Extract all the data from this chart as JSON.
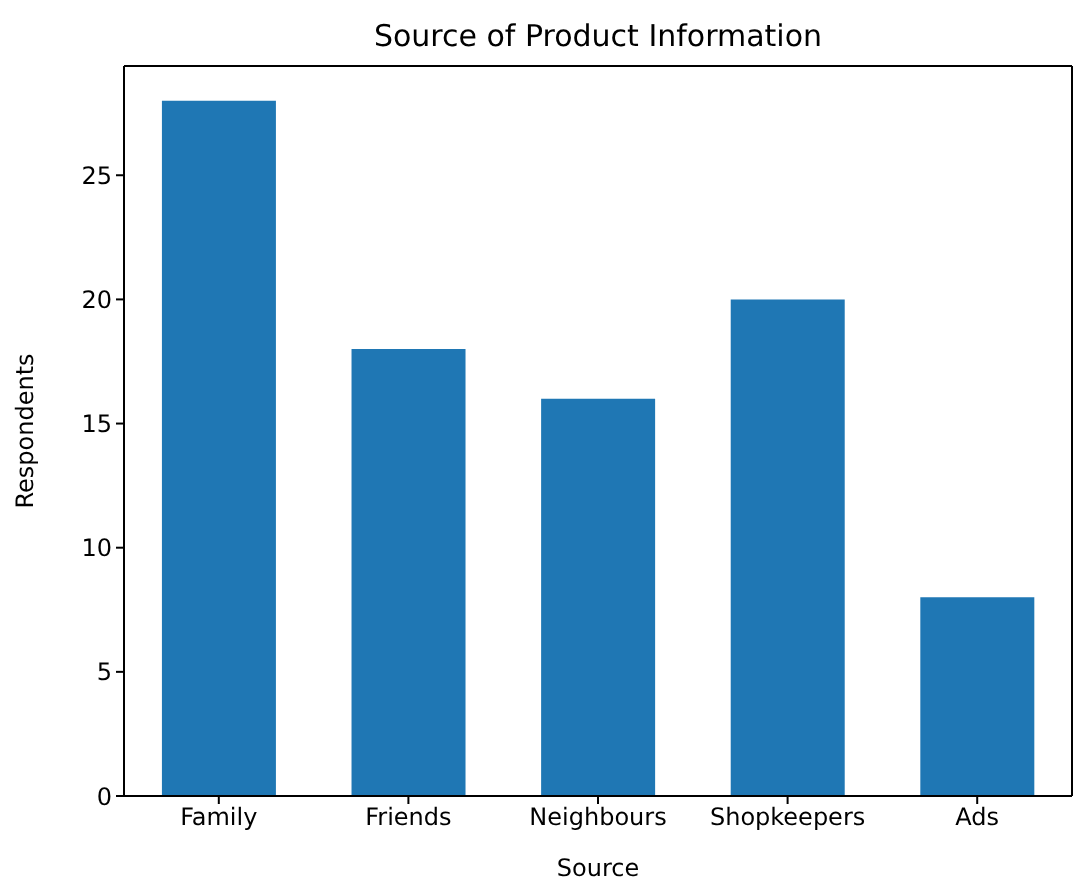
{
  "chart_data": {
    "type": "bar",
    "title": "Source of Product Information",
    "xlabel": "Source",
    "ylabel": "Respondents",
    "categories": [
      "Family",
      "Friends",
      "Neighbours",
      "Shopkeepers",
      "Ads"
    ],
    "values": [
      28,
      18,
      16,
      20,
      8
    ],
    "color": "#1f77b4",
    "ylim": [
      0,
      29.4
    ],
    "yticks": [
      0,
      5,
      10,
      15,
      20,
      25
    ],
    "grid": false,
    "legend": false
  }
}
